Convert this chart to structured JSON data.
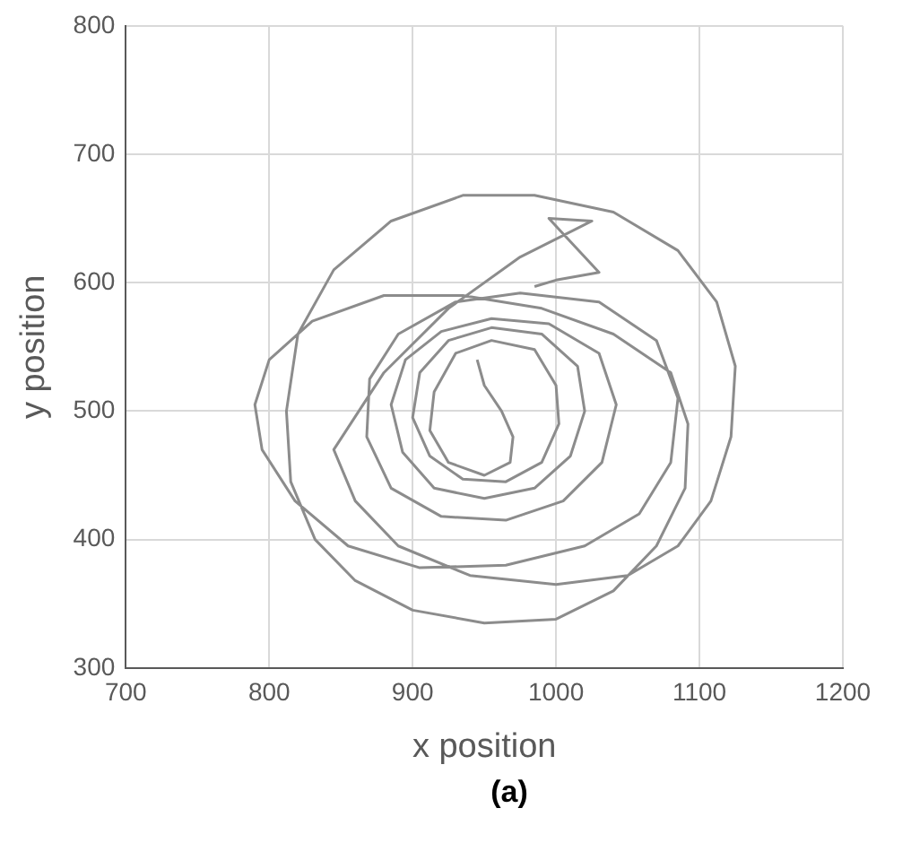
{
  "chart_data": {
    "type": "line",
    "xlabel": "x position",
    "ylabel": "y position",
    "annotations": [
      "(a)"
    ],
    "xlim": [
      700,
      1200
    ],
    "xticks": [
      700,
      800,
      900,
      1000,
      1100,
      1200
    ],
    "ylim": [
      300,
      800
    ],
    "yticks": [
      300,
      400,
      500,
      600,
      700,
      800
    ],
    "grid": true,
    "legend": false,
    "marker": "none",
    "line_style": "solid",
    "series": [
      {
        "color": "#8c8c8c",
        "x": [
          945,
          950,
          962,
          970,
          968,
          950,
          925,
          912,
          915,
          930,
          955,
          985,
          1000,
          1002,
          990,
          965,
          935,
          912,
          900,
          905,
          925,
          955,
          990,
          1015,
          1020,
          1010,
          985,
          950,
          915,
          893,
          885,
          895,
          920,
          955,
          995,
          1030,
          1042,
          1032,
          1005,
          965,
          920,
          885,
          868,
          870,
          890,
          930,
          975,
          1030,
          1070,
          1085,
          1080,
          1058,
          1020,
          965,
          905,
          855,
          818,
          795,
          790,
          800,
          830,
          880,
          935,
          990,
          1040,
          1080,
          1092,
          1090,
          1070,
          1040,
          1000,
          950,
          900,
          860,
          832,
          815,
          812,
          820,
          845,
          885,
          935,
          985,
          1040,
          1085,
          1112,
          1125,
          1122,
          1108,
          1085,
          1050,
          1000,
          940,
          890,
          860,
          845,
          880,
          925,
          975,
          1025,
          995,
          1030,
          1000,
          985
        ],
        "values": [
          540,
          520,
          500,
          480,
          460,
          450,
          460,
          485,
          515,
          545,
          555,
          548,
          520,
          490,
          460,
          445,
          447,
          465,
          495,
          530,
          555,
          565,
          560,
          535,
          500,
          465,
          440,
          432,
          440,
          468,
          505,
          540,
          562,
          572,
          568,
          545,
          505,
          460,
          430,
          415,
          418,
          440,
          480,
          525,
          560,
          585,
          592,
          585,
          555,
          510,
          460,
          420,
          395,
          380,
          378,
          395,
          430,
          470,
          505,
          540,
          570,
          590,
          590,
          580,
          560,
          530,
          490,
          440,
          395,
          360,
          338,
          335,
          345,
          368,
          400,
          445,
          500,
          560,
          610,
          648,
          668,
          668,
          655,
          625,
          585,
          535,
          480,
          430,
          395,
          372,
          365,
          372,
          395,
          430,
          470,
          530,
          580,
          620,
          648,
          650,
          608,
          602,
          597
        ]
      }
    ]
  }
}
